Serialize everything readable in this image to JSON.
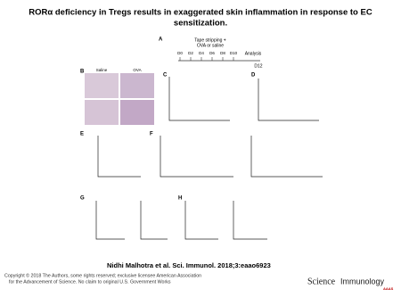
{
  "header": {
    "title": "RORα deficiency in Tregs results in exaggerated skin inflammation in response to EC sensitization."
  },
  "figure": {
    "panels": [
      "A",
      "B",
      "C",
      "D",
      "E",
      "F",
      "G",
      "H"
    ],
    "timeline": {
      "caption_1": "Tape stripping +",
      "caption_2": "OVA or saline",
      "days": [
        "D0",
        "D2",
        "D4",
        "D6",
        "D8",
        "D10"
      ],
      "end": "Analysis",
      "end_day": "D12"
    },
    "histology_labels": [
      "Saline",
      "OVA"
    ]
  },
  "citation": "Nidhi Malhotra et al. Sci. Immunol. 2018;3:eaao6923",
  "footer": {
    "copyright_1": "Copyright © 2018 The Authors, some rights reserved; exclusive licensee American Association",
    "copyright_2": "for the Advancement of Science. No claim to original U.S. Government Works",
    "logo_1": "Science",
    "logo_2": "Immunology",
    "logo_3": "AAAS"
  }
}
